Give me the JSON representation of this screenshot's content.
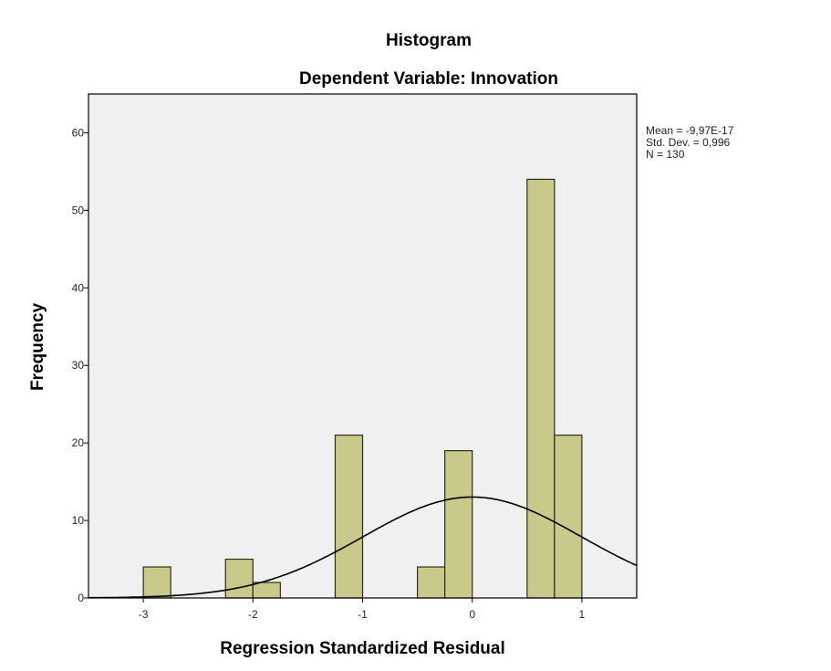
{
  "chart_data": {
    "type": "bar",
    "title": "Histogram",
    "subtitle": "Dependent Variable: Innovation",
    "xlabel": "Regression Standardized Residual",
    "ylabel": "Frequency",
    "xlim": [
      -3.5,
      1.5
    ],
    "ylim": [
      0,
      65
    ],
    "bin_width": 0.25,
    "x_ticks": [
      -3,
      -2,
      -1,
      0,
      1
    ],
    "x_tick_labels": [
      "-3",
      "-2",
      "-1",
      "0",
      "1"
    ],
    "y_ticks": [
      0,
      10,
      20,
      30,
      40,
      50,
      60
    ],
    "y_tick_labels": [
      "0",
      "10",
      "20",
      "30",
      "40",
      "50",
      "60"
    ],
    "bins": [
      {
        "x_start": -3.0,
        "x_end": -2.75,
        "count": 4
      },
      {
        "x_start": -2.25,
        "x_end": -2.0,
        "count": 5
      },
      {
        "x_start": -2.0,
        "x_end": -1.75,
        "count": 2
      },
      {
        "x_start": -1.25,
        "x_end": -1.0,
        "count": 21
      },
      {
        "x_start": -0.5,
        "x_end": -0.25,
        "count": 4
      },
      {
        "x_start": -0.25,
        "x_end": 0.0,
        "count": 19
      },
      {
        "x_start": 0.5,
        "x_end": 0.75,
        "count": 54
      },
      {
        "x_start": 0.75,
        "x_end": 1.0,
        "count": 21
      }
    ],
    "normal_curve": {
      "mean": 0,
      "std": 0.996,
      "n": 130
    },
    "stats_text": [
      "Mean = -9,97E-17",
      "Std. Dev. = 0,996",
      "N = 130"
    ],
    "colors": {
      "bar": "#c9c98a",
      "bar_edge": "#2e2e1a",
      "plot_background": "#f0f0f0",
      "curve": "#000000"
    },
    "grid": false,
    "legend": "top-right"
  }
}
